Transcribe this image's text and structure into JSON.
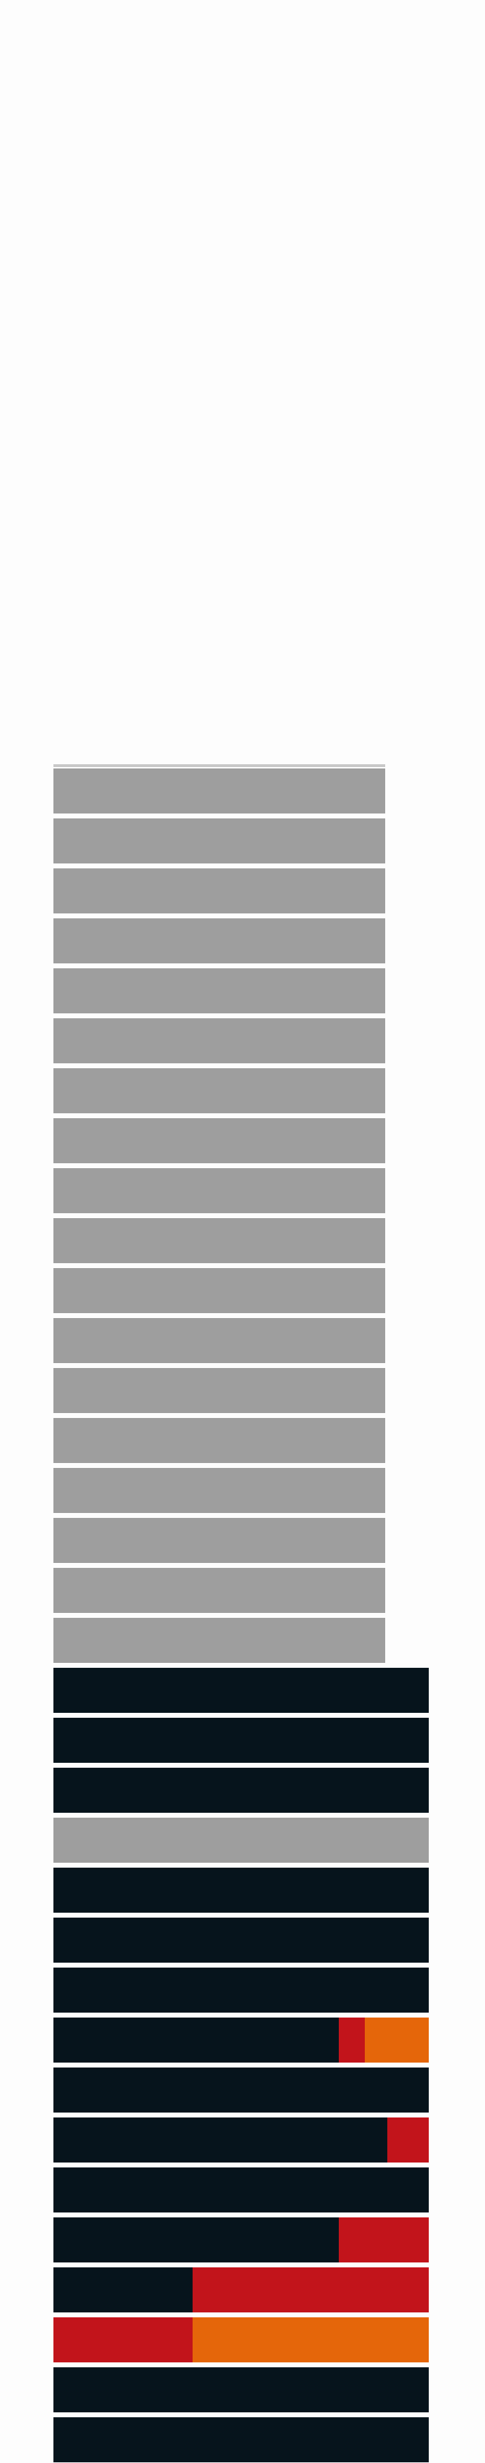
{
  "colors": {
    "background": "#fdfdfd",
    "gray": "#9e9e9e",
    "navy": "#06141c",
    "red": "#c2141b",
    "orange": "#e5660a"
  },
  "rows": [
    {
      "segments": [
        {
          "color": "gray",
          "fraction": 1.0
        }
      ],
      "full": false
    },
    {
      "segments": [
        {
          "color": "gray",
          "fraction": 1.0
        }
      ],
      "full": false
    },
    {
      "segments": [
        {
          "color": "gray",
          "fraction": 1.0
        }
      ],
      "full": false
    },
    {
      "segments": [
        {
          "color": "gray",
          "fraction": 1.0
        }
      ],
      "full": false
    },
    {
      "segments": [
        {
          "color": "gray",
          "fraction": 1.0
        }
      ],
      "full": false
    },
    {
      "segments": [
        {
          "color": "gray",
          "fraction": 1.0
        }
      ],
      "full": false
    },
    {
      "segments": [
        {
          "color": "gray",
          "fraction": 1.0
        }
      ],
      "full": false
    },
    {
      "segments": [
        {
          "color": "gray",
          "fraction": 1.0
        }
      ],
      "full": false
    },
    {
      "segments": [
        {
          "color": "gray",
          "fraction": 1.0
        }
      ],
      "full": false
    },
    {
      "segments": [
        {
          "color": "gray",
          "fraction": 1.0
        }
      ],
      "full": false
    },
    {
      "segments": [
        {
          "color": "gray",
          "fraction": 1.0
        }
      ],
      "full": false
    },
    {
      "segments": [
        {
          "color": "gray",
          "fraction": 1.0
        }
      ],
      "full": false
    },
    {
      "segments": [
        {
          "color": "gray",
          "fraction": 1.0
        }
      ],
      "full": false
    },
    {
      "segments": [
        {
          "color": "gray",
          "fraction": 1.0
        }
      ],
      "full": false
    },
    {
      "segments": [
        {
          "color": "gray",
          "fraction": 1.0
        }
      ],
      "full": false
    },
    {
      "segments": [
        {
          "color": "gray",
          "fraction": 1.0
        }
      ],
      "full": false
    },
    {
      "segments": [
        {
          "color": "gray",
          "fraction": 1.0
        }
      ],
      "full": false
    },
    {
      "segments": [
        {
          "color": "gray",
          "fraction": 1.0
        }
      ],
      "full": false
    },
    {
      "segments": [
        {
          "color": "navy",
          "fraction": 1.0
        }
      ],
      "full": true
    },
    {
      "segments": [
        {
          "color": "navy",
          "fraction": 1.0
        }
      ],
      "full": true
    },
    {
      "segments": [
        {
          "color": "navy",
          "fraction": 1.0
        }
      ],
      "full": true
    },
    {
      "segments": [
        {
          "color": "gray",
          "fraction": 1.0
        }
      ],
      "full": true
    },
    {
      "segments": [
        {
          "color": "navy",
          "fraction": 1.0
        }
      ],
      "full": true
    },
    {
      "segments": [
        {
          "color": "navy",
          "fraction": 1.0
        }
      ],
      "full": true
    },
    {
      "segments": [
        {
          "color": "navy",
          "fraction": 1.0
        }
      ],
      "full": true
    },
    {
      "segments": [
        {
          "color": "navy",
          "fraction": 0.76
        },
        {
          "color": "red",
          "fraction": 0.07
        },
        {
          "color": "orange",
          "fraction": 0.17
        }
      ],
      "full": true
    },
    {
      "segments": [
        {
          "color": "navy",
          "fraction": 1.0
        }
      ],
      "full": true
    },
    {
      "segments": [
        {
          "color": "navy",
          "fraction": 0.89
        },
        {
          "color": "red",
          "fraction": 0.11
        }
      ],
      "full": true
    },
    {
      "segments": [
        {
          "color": "navy",
          "fraction": 1.0
        }
      ],
      "full": true
    },
    {
      "segments": [
        {
          "color": "navy",
          "fraction": 0.76
        },
        {
          "color": "red",
          "fraction": 0.24
        }
      ],
      "full": true
    },
    {
      "segments": [
        {
          "color": "navy",
          "fraction": 0.37
        },
        {
          "color": "red",
          "fraction": 0.63
        }
      ],
      "full": true
    },
    {
      "segments": [
        {
          "color": "red",
          "fraction": 0.37
        },
        {
          "color": "orange",
          "fraction": 0.63
        }
      ],
      "full": true
    },
    {
      "segments": [
        {
          "color": "navy",
          "fraction": 1.0
        }
      ],
      "full": true
    },
    {
      "segments": [
        {
          "color": "navy",
          "fraction": 1.0
        }
      ],
      "full": true
    }
  ]
}
